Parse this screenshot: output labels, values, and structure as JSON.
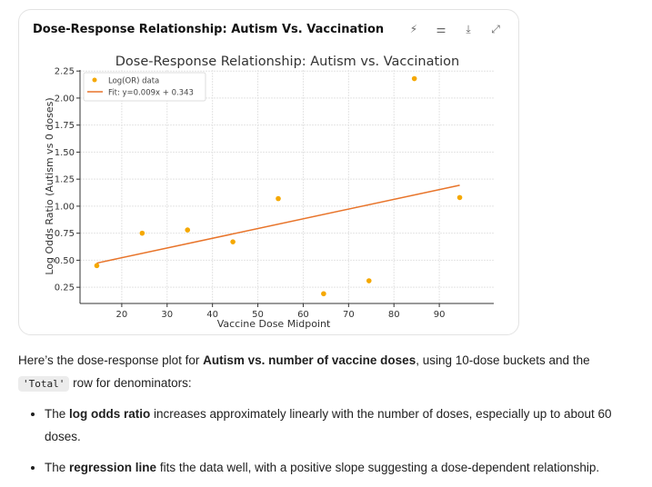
{
  "card": {
    "title": "Dose-Response Relationship: Autism Vs. Vaccination",
    "tools": [
      "chart-type-icon",
      "settings-sliders-icon",
      "download-icon",
      "expand-icon"
    ]
  },
  "chart_data": {
    "type": "scatter",
    "title": "Dose-Response Relationship: Autism vs. Vaccination",
    "xlabel": "Vaccine Dose Midpoint",
    "ylabel": "Log Odds Ratio (Autism vs 0 doses)",
    "xlim": [
      10.8,
      98.8
    ],
    "ylim": [
      0.1,
      2.26
    ],
    "xticks": [
      20,
      30,
      40,
      50,
      60,
      70,
      80,
      90
    ],
    "yticks": [
      "0.25",
      "0.50",
      "0.75",
      "1.00",
      "1.25",
      "1.50",
      "1.75",
      "2.00",
      "2.25"
    ],
    "grid": true,
    "legend_position": "top-left",
    "series": [
      {
        "name": "Log(OR) data",
        "kind": "scatter",
        "color": "#f5a800",
        "x": [
          14.5,
          24.5,
          34.5,
          44.5,
          54.5,
          64.5,
          74.5,
          84.5,
          94.5
        ],
        "y": [
          0.45,
          0.75,
          0.78,
          0.67,
          1.07,
          0.19,
          0.31,
          2.18,
          1.08
        ]
      },
      {
        "name": "Fit: y=0.009x + 0.343",
        "kind": "line",
        "color": "#e8742a",
        "slope": 0.009,
        "intercept": 0.343,
        "x_range": [
          14.5,
          94.5
        ]
      }
    ]
  },
  "text": {
    "p1_a": "Here’s the dose-response plot for ",
    "p1_b": "Autism vs. number of vaccine doses",
    "p1_c": ", using 10-dose buckets and the",
    "p1_code": "'Total'",
    "p1_d": " row for denominators:",
    "b1_bold": "log odds ratio",
    "b1_pre": "The ",
    "b1_rest": " increases approximately linearly with the number of doses, especially up to about 60 doses.",
    "b2_pre": "The ",
    "b2_bold": "regression line",
    "b2_rest": " fits the data well, with a positive slope suggesting a dose-dependent relationship."
  }
}
